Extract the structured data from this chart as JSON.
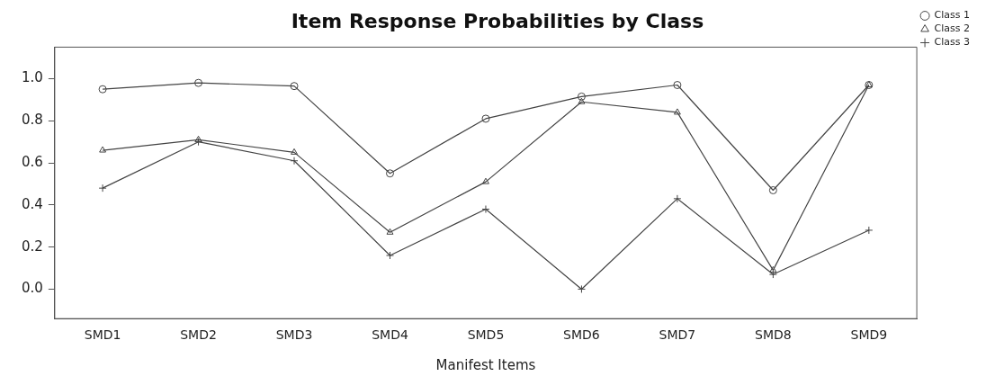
{
  "chart_data": {
    "type": "line",
    "title": "Item Response Probabilities by Class",
    "xlabel": "Manifest Items",
    "categories": [
      "SMD1",
      "SMD2",
      "SMD3",
      "SMD4",
      "SMD5",
      "SMD6",
      "SMD7",
      "SMD8",
      "SMD9"
    ],
    "series": [
      {
        "name": "Class 1",
        "color": "#444444",
        "marker": "circle",
        "values": [
          0.95,
          0.98,
          0.965,
          0.55,
          0.81,
          0.915,
          0.97,
          0.47,
          0.97
        ]
      },
      {
        "name": "Class 2",
        "color": "#444444",
        "marker": "triangle",
        "values": [
          0.66,
          0.71,
          0.65,
          0.27,
          0.51,
          0.89,
          0.84,
          0.09,
          0.97
        ]
      },
      {
        "name": "Class 3",
        "color": "#444444",
        "marker": "cross",
        "values": [
          0.48,
          0.7,
          0.61,
          0.16,
          0.38,
          0.0,
          0.43,
          0.07,
          0.28
        ]
      }
    ],
    "ylim": [
      -0.14,
      1.15
    ],
    "yticks": [
      {
        "value": 0,
        "label": "0.0"
      },
      0.2,
      0.4,
      0.6,
      0.8,
      {
        "value": 1,
        "label": "1.0"
      }
    ],
    "grid": false,
    "legend": "top right",
    "line_style": "solid"
  }
}
